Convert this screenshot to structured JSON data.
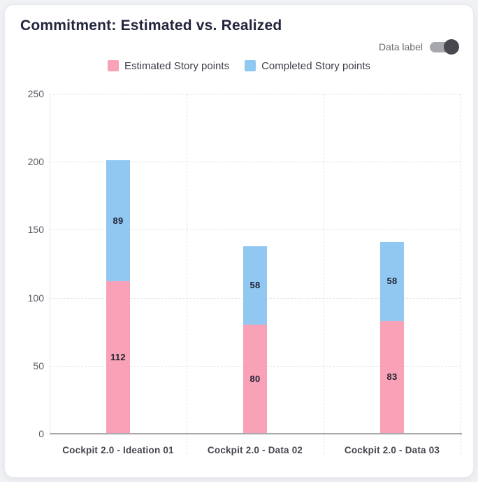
{
  "card": {
    "title": "Commitment: Estimated vs. Realized"
  },
  "controls": {
    "data_label_toggle": {
      "label": "Data label",
      "state": "on",
      "track_color": "#a7a7ae",
      "knob_color": "#48484f"
    }
  },
  "chart_data": {
    "type": "bar",
    "stacked": true,
    "title": "Commitment: Estimated vs. Realized",
    "categories": [
      "Cockpit 2.0 - Ideation 01",
      "Cockpit 2.0 - Data 02",
      "Cockpit 2.0 - Data 03"
    ],
    "series": [
      {
        "name": "Estimated Story points",
        "color": "#F9A1B7",
        "values": [
          112,
          80,
          83
        ]
      },
      {
        "name": "Completed Story points",
        "color": "#90C8F1",
        "values": [
          89,
          58,
          58
        ]
      }
    ],
    "xlabel": "",
    "ylabel": "",
    "ylim": [
      0,
      250
    ],
    "yticks": [
      0,
      50,
      100,
      150,
      200,
      250
    ],
    "grid": "dashed",
    "legend_position": "top",
    "data_labels": true
  }
}
